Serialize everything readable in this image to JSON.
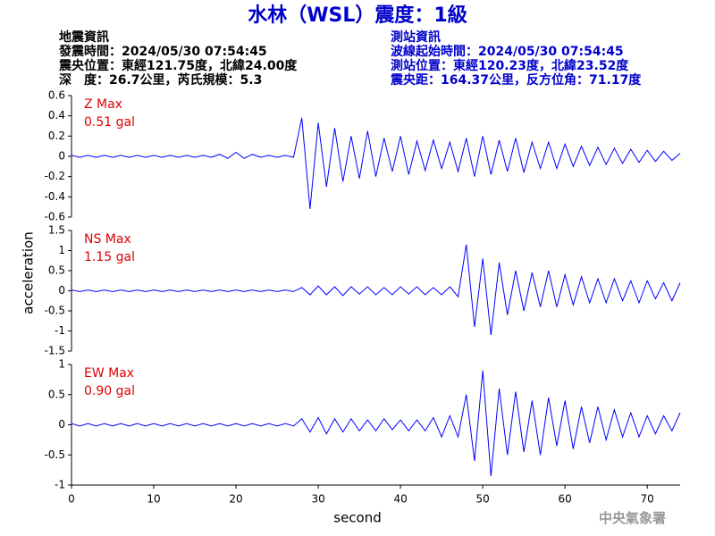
{
  "title": "水林（WSL）震度：1級",
  "info_left": [
    "地震資訊",
    "發震時間：2024/05/30 07:54:45",
    "震央位置：東經121.75度，北緯24.00度",
    "深　度：26.7公里，芮氏規模：5.3"
  ],
  "info_right": [
    "測站資訊",
    "波線起始時間：2024/05/30 07:54:45",
    "測站位置：東經120.23度，北緯23.52度",
    "震央距：164.37公里，反方位角：71.17度"
  ],
  "footer": "中央氣象署",
  "chart_data": [
    {
      "type": "line",
      "annotations": [
        "Z Max",
        "0.51 gal"
      ],
      "color": "#0000ff",
      "xlim": [
        0,
        74
      ],
      "ylim": [
        -0.6,
        0.6
      ],
      "yticks": [
        0.6,
        0.4,
        0.2,
        0,
        -0.2,
        -0.4,
        -0.6
      ],
      "x": [
        0,
        1,
        2,
        3,
        4,
        5,
        6,
        7,
        8,
        9,
        10,
        11,
        12,
        13,
        14,
        15,
        16,
        17,
        18,
        19,
        20,
        21,
        22,
        23,
        24,
        25,
        26,
        27,
        28,
        29,
        30,
        31,
        32,
        33,
        34,
        35,
        36,
        37,
        38,
        39,
        40,
        41,
        42,
        43,
        44,
        45,
        46,
        47,
        48,
        49,
        50,
        51,
        52,
        53,
        54,
        55,
        56,
        57,
        58,
        59,
        60,
        61,
        62,
        63,
        64,
        65,
        66,
        67,
        68,
        69,
        70,
        71,
        72,
        73,
        74
      ],
      "values": [
        0.01,
        -0.01,
        0.01,
        -0.01,
        0.01,
        -0.01,
        0.01,
        -0.01,
        0.01,
        -0.01,
        0.01,
        -0.01,
        0.01,
        -0.01,
        0.01,
        -0.01,
        0.01,
        -0.01,
        0.02,
        -0.02,
        0.04,
        -0.02,
        0.02,
        -0.01,
        0.01,
        -0.01,
        0.01,
        -0.01,
        0.38,
        -0.52,
        0.33,
        -0.3,
        0.28,
        -0.25,
        0.2,
        -0.22,
        0.25,
        -0.2,
        0.18,
        -0.15,
        0.2,
        -0.18,
        0.15,
        -0.14,
        0.16,
        -0.12,
        0.14,
        -0.15,
        0.18,
        -0.2,
        0.2,
        -0.18,
        0.16,
        -0.15,
        0.18,
        -0.16,
        0.14,
        -0.12,
        0.14,
        -0.12,
        0.12,
        -0.1,
        0.1,
        -0.09,
        0.09,
        -0.08,
        0.08,
        -0.07,
        0.07,
        -0.06,
        0.06,
        -0.05,
        0.05,
        -0.04,
        0.03
      ]
    },
    {
      "type": "line",
      "annotations": [
        "NS Max",
        "1.15 gal"
      ],
      "color": "#0000ff",
      "ylabel": "acceleration",
      "xlim": [
        0,
        74
      ],
      "ylim": [
        -1.5,
        1.5
      ],
      "yticks": [
        1.5,
        1,
        0.5,
        0,
        -0.5,
        -1,
        -1.5
      ],
      "x": [
        0,
        1,
        2,
        3,
        4,
        5,
        6,
        7,
        8,
        9,
        10,
        11,
        12,
        13,
        14,
        15,
        16,
        17,
        18,
        19,
        20,
        21,
        22,
        23,
        24,
        25,
        26,
        27,
        28,
        29,
        30,
        31,
        32,
        33,
        34,
        35,
        36,
        37,
        38,
        39,
        40,
        41,
        42,
        43,
        44,
        45,
        46,
        47,
        48,
        49,
        50,
        51,
        52,
        53,
        54,
        55,
        56,
        57,
        58,
        59,
        60,
        61,
        62,
        63,
        64,
        65,
        66,
        67,
        68,
        69,
        70,
        71,
        72,
        73,
        74
      ],
      "values": [
        0.02,
        -0.02,
        0.02,
        -0.02,
        0.02,
        -0.02,
        0.02,
        -0.02,
        0.02,
        -0.02,
        0.02,
        -0.02,
        0.02,
        -0.02,
        0.02,
        -0.02,
        0.02,
        -0.02,
        0.02,
        -0.02,
        0.02,
        -0.02,
        0.02,
        -0.02,
        0.02,
        -0.02,
        0.02,
        -0.02,
        0.08,
        -0.1,
        0.12,
        -0.1,
        0.1,
        -0.12,
        0.1,
        -0.08,
        0.1,
        -0.1,
        0.08,
        -0.1,
        0.1,
        -0.08,
        0.1,
        -0.1,
        0.08,
        -0.1,
        0.1,
        -0.15,
        1.15,
        -0.9,
        0.8,
        -1.1,
        0.7,
        -0.6,
        0.5,
        -0.5,
        0.45,
        -0.4,
        0.5,
        -0.4,
        0.4,
        -0.35,
        0.35,
        -0.3,
        0.3,
        -0.3,
        0.3,
        -0.25,
        0.25,
        -0.3,
        0.25,
        -0.2,
        0.2,
        -0.25,
        0.2
      ]
    },
    {
      "type": "line",
      "annotations": [
        "EW Max",
        "0.90 gal"
      ],
      "color": "#0000ff",
      "xlabel": "second",
      "xlim": [
        0,
        74
      ],
      "ylim": [
        -1,
        1
      ],
      "yticks": [
        1,
        0.5,
        0,
        -0.5,
        -1
      ],
      "xticks": [
        0,
        10,
        20,
        30,
        40,
        50,
        60,
        70
      ],
      "x": [
        0,
        1,
        2,
        3,
        4,
        5,
        6,
        7,
        8,
        9,
        10,
        11,
        12,
        13,
        14,
        15,
        16,
        17,
        18,
        19,
        20,
        21,
        22,
        23,
        24,
        25,
        26,
        27,
        28,
        29,
        30,
        31,
        32,
        33,
        34,
        35,
        36,
        37,
        38,
        39,
        40,
        41,
        42,
        43,
        44,
        45,
        46,
        47,
        48,
        49,
        50,
        51,
        52,
        53,
        54,
        55,
        56,
        57,
        58,
        59,
        60,
        61,
        62,
        63,
        64,
        65,
        66,
        67,
        68,
        69,
        70,
        71,
        72,
        73,
        74
      ],
      "values": [
        0.02,
        -0.02,
        0.02,
        -0.02,
        0.02,
        -0.02,
        0.02,
        -0.02,
        0.02,
        -0.02,
        0.02,
        -0.02,
        0.02,
        -0.02,
        0.02,
        -0.02,
        0.02,
        -0.02,
        0.02,
        -0.02,
        0.02,
        -0.02,
        0.02,
        -0.02,
        0.02,
        -0.02,
        0.02,
        -0.02,
        0.1,
        -0.12,
        0.12,
        -0.15,
        0.1,
        -0.12,
        0.1,
        -0.1,
        0.08,
        -0.1,
        0.1,
        -0.08,
        0.08,
        -0.1,
        0.08,
        -0.1,
        0.12,
        -0.2,
        0.15,
        -0.2,
        0.5,
        -0.6,
        0.9,
        -0.85,
        0.6,
        -0.5,
        0.55,
        -0.45,
        0.4,
        -0.5,
        0.45,
        -0.35,
        0.4,
        -0.4,
        0.3,
        -0.3,
        0.3,
        -0.25,
        0.25,
        -0.2,
        0.2,
        -0.2,
        0.15,
        -0.15,
        0.15,
        -0.1,
        0.2
      ]
    }
  ]
}
